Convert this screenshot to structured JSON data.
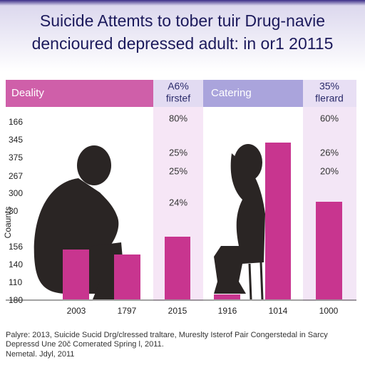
{
  "header": {
    "title_lines": [
      "Suicide Attemts to tober tuir Drug-navie",
      "dencioured depressed adult: in or1 20115"
    ]
  },
  "bands": [
    {
      "label": "Deality"
    },
    {
      "label_lines": [
        "A6%",
        "firstef"
      ]
    },
    {
      "label": "Catering"
    },
    {
      "label_lines": [
        "35%",
        "flerard"
      ]
    }
  ],
  "axis": {
    "title": "Coaunts",
    "labels": [
      "166",
      "345",
      "375",
      "267",
      "300",
      "30",
      "156",
      "140",
      "110",
      "180"
    ]
  },
  "columns": [
    {
      "labels": [
        "80%",
        "25%",
        "25%",
        "24%"
      ]
    },
    {
      "labels": [
        "60%",
        "26%",
        "20%"
      ]
    }
  ],
  "x_labels": [
    "2003",
    "1797",
    "2015",
    "1916",
    "1014",
    "1000"
  ],
  "footer": {
    "lines": [
      "Palyre: 2013, Suicide Sucid Drg/clressed traltare, Mureslty Isterof Pair Congerstedal in Sarcy",
      "Depressd Une 20č Comerated Spring l, 2011.",
      "Nemetal. Jdyl, 2011"
    ]
  }
}
